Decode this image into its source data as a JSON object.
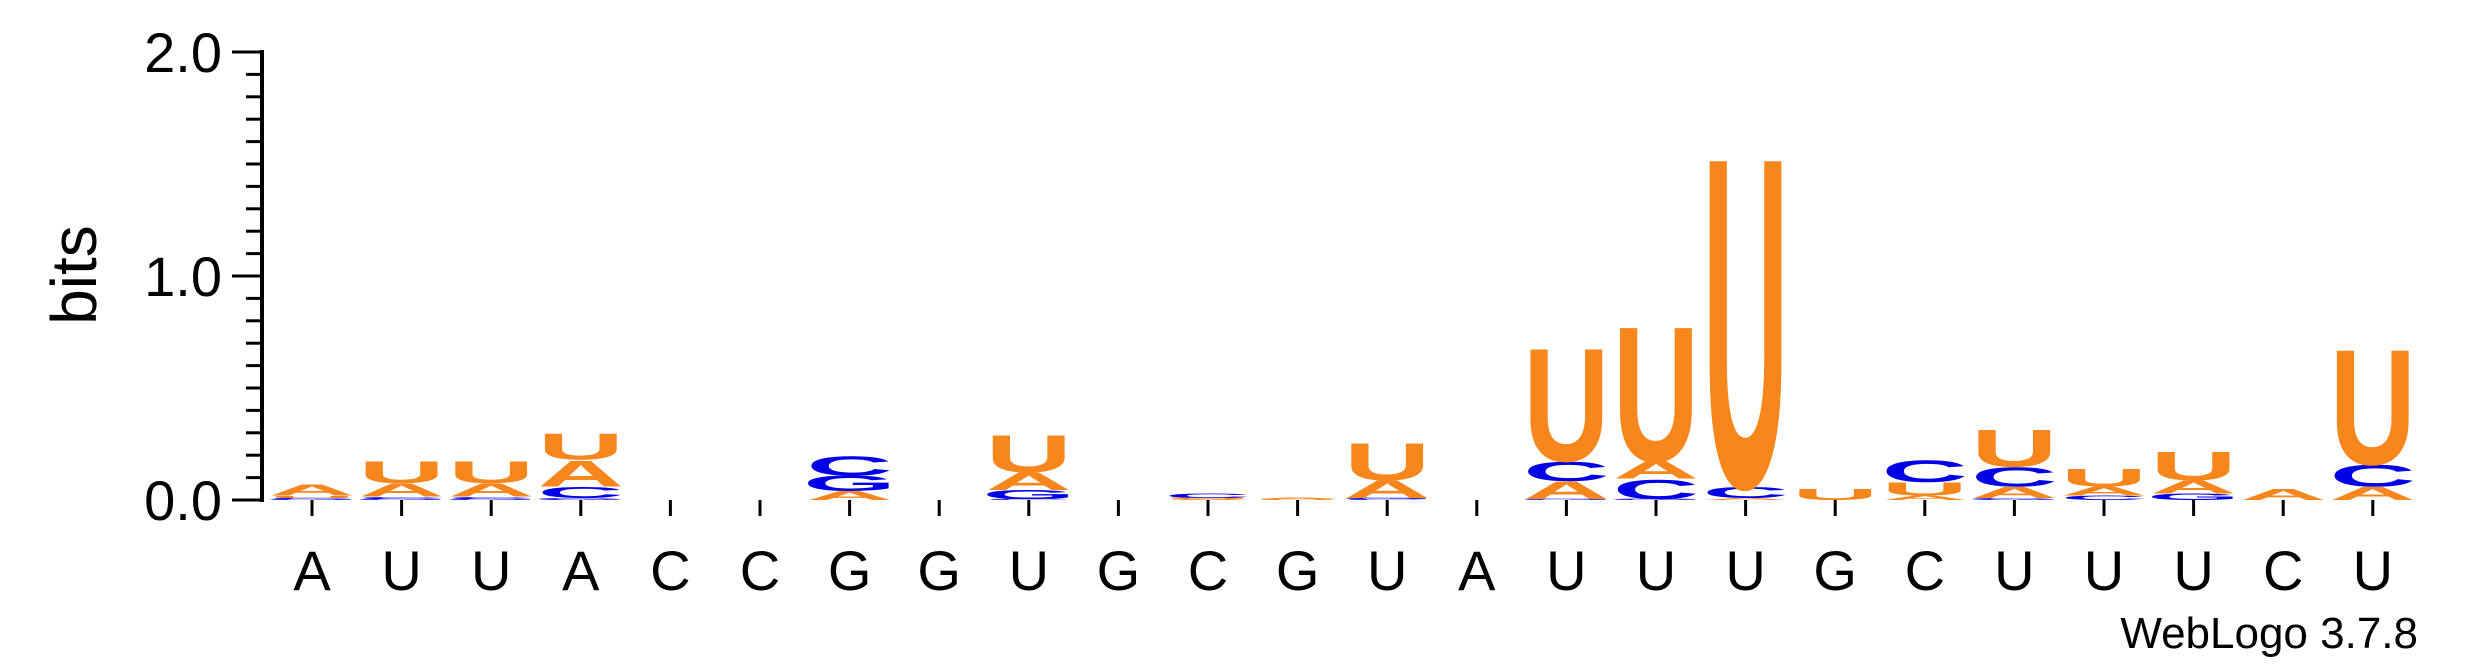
{
  "chart_data": {
    "type": "sequence-logo",
    "ylabel": "bits",
    "ylim": [
      0,
      2.0
    ],
    "yticks": [
      {
        "value": 0.0,
        "label": "0.0"
      },
      {
        "value": 1.0,
        "label": "1.0"
      },
      {
        "value": 2.0,
        "label": "2.0"
      }
    ],
    "colors": {
      "A": "#f7861c",
      "U": "#f7861c",
      "C": "#0000e6",
      "G": "#0000e6"
    },
    "positions": [
      {
        "label": "A",
        "stack": [
          [
            "G",
            0.005
          ],
          [
            "C",
            0.005
          ],
          [
            "U",
            0.01
          ],
          [
            "A",
            0.05
          ]
        ]
      },
      {
        "label": "U",
        "stack": [
          [
            "G",
            0.005
          ],
          [
            "C",
            0.01
          ],
          [
            "A",
            0.06
          ],
          [
            "U",
            0.1
          ]
        ]
      },
      {
        "label": "U",
        "stack": [
          [
            "G",
            0.005
          ],
          [
            "C",
            0.01
          ],
          [
            "A",
            0.06
          ],
          [
            "U",
            0.1
          ]
        ]
      },
      {
        "label": "A",
        "stack": [
          [
            "G",
            0.01
          ],
          [
            "C",
            0.05
          ],
          [
            "A",
            0.12
          ],
          [
            "U",
            0.12
          ]
        ]
      },
      {
        "label": "C",
        "stack": []
      },
      {
        "label": "C",
        "stack": []
      },
      {
        "label": "G",
        "stack": [
          [
            "A",
            0.04
          ],
          [
            "G",
            0.07
          ],
          [
            "C",
            0.09
          ]
        ]
      },
      {
        "label": "G",
        "stack": []
      },
      {
        "label": "U",
        "stack": [
          [
            "C",
            0.005
          ],
          [
            "G",
            0.04
          ],
          [
            "A",
            0.08
          ],
          [
            "U",
            0.17
          ]
        ]
      },
      {
        "label": "G",
        "stack": []
      },
      {
        "label": "C",
        "stack": [
          [
            "A",
            0.005
          ],
          [
            "U",
            0.005
          ],
          [
            "C",
            0.02
          ]
        ]
      },
      {
        "label": "G",
        "stack": [
          [
            "U",
            0.005
          ],
          [
            "A",
            0.005
          ]
        ]
      },
      {
        "label": "U",
        "stack": [
          [
            "C",
            0.005
          ],
          [
            "G",
            0.005
          ],
          [
            "A",
            0.08
          ],
          [
            "U",
            0.17
          ]
        ]
      },
      {
        "label": "A",
        "stack": []
      },
      {
        "label": "U",
        "stack": [
          [
            "G",
            0.005
          ],
          [
            "A",
            0.08
          ],
          [
            "C",
            0.09
          ],
          [
            "U",
            0.52
          ]
        ]
      },
      {
        "label": "U",
        "stack": [
          [
            "G",
            0.005
          ],
          [
            "C",
            0.09
          ],
          [
            "A",
            0.08
          ],
          [
            "U",
            0.62
          ]
        ]
      },
      {
        "label": "U",
        "stack": [
          [
            "A",
            0.01
          ],
          [
            "C",
            0.05
          ],
          [
            "U",
            1.52
          ]
        ]
      },
      {
        "label": "G",
        "stack": [
          [
            "U",
            0.05
          ]
        ]
      },
      {
        "label": "C",
        "stack": [
          [
            "A",
            0.02
          ],
          [
            "U",
            0.06
          ],
          [
            "C",
            0.1
          ]
        ]
      },
      {
        "label": "U",
        "stack": [
          [
            "G",
            0.01
          ],
          [
            "A",
            0.05
          ],
          [
            "C",
            0.09
          ],
          [
            "U",
            0.17
          ]
        ]
      },
      {
        "label": "U",
        "stack": [
          [
            "C",
            0.02
          ],
          [
            "A",
            0.04
          ],
          [
            "U",
            0.08
          ]
        ]
      },
      {
        "label": "U",
        "stack": [
          [
            "G",
            0.03
          ],
          [
            "A",
            0.06
          ],
          [
            "U",
            0.13
          ]
        ]
      },
      {
        "label": "C",
        "stack": [
          [
            "A",
            0.05
          ]
        ]
      },
      {
        "label": "U",
        "stack": [
          [
            "A",
            0.06
          ],
          [
            "C",
            0.1
          ],
          [
            "U",
            0.53
          ]
        ]
      }
    ]
  },
  "watermark": "WebLogo 3.7.8"
}
